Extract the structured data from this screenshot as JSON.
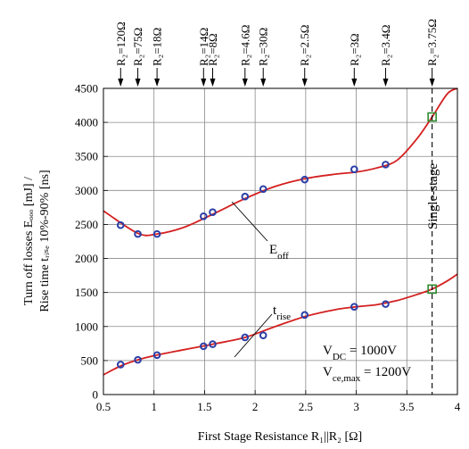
{
  "chart_data": {
    "type": "scatter",
    "xlabel": "First Stage Resistance R₁||R₂ [Ω]",
    "ylabel_line1": "Turn off losses Eₒₒₒ [mJ] /",
    "ylabel_line2": "Rise time tᵣᵢₛₑ 10%-90% [ns]",
    "xlim": [
      0.5,
      4
    ],
    "ylim": [
      0,
      4500
    ],
    "x_ticks": [
      0.5,
      1,
      1.5,
      2,
      2.5,
      3,
      3.5,
      4
    ],
    "x_tick_labels": [
      "0.5",
      "1",
      "1.5",
      "2",
      "2.5",
      "3",
      "3.5",
      "4"
    ],
    "y_ticks": [
      0,
      500,
      1000,
      1500,
      2000,
      2500,
      3000,
      3500,
      4000,
      4500
    ],
    "y_tick_labels": [
      "0",
      "500",
      "1000",
      "1500",
      "2000",
      "2500",
      "3000",
      "3500",
      "4000",
      "4500"
    ],
    "grid": true,
    "series": [
      {
        "name": "E_off",
        "label_main": "E",
        "label_sub": "off",
        "marker_color": "#2b3fa8",
        "fit_color": "#d42020",
        "x": [
          0.67,
          0.84,
          1.03,
          1.49,
          1.58,
          1.9,
          2.08,
          2.49,
          2.98,
          3.29
        ],
        "y": [
          2490,
          2360,
          2360,
          2620,
          2680,
          2910,
          3020,
          3160,
          3310,
          3380
        ],
        "fit_x": [
          0.5,
          0.84,
          1.03,
          1.3,
          1.58,
          1.9,
          2.2,
          2.5,
          2.8,
          3.0,
          3.2,
          3.4,
          3.6,
          3.75,
          3.9,
          4.0
        ],
        "fit_y": [
          2700,
          2370,
          2360,
          2460,
          2650,
          2880,
          3060,
          3175,
          3240,
          3270,
          3330,
          3440,
          3760,
          4080,
          4420,
          4620
        ]
      },
      {
        "name": "t_rise",
        "label_main": "t",
        "label_sub": "rise",
        "marker_color": "#2b3fa8",
        "fit_color": "#d42020",
        "x": [
          0.67,
          0.84,
          1.03,
          1.49,
          1.58,
          1.9,
          2.08,
          2.49,
          2.98,
          3.29
        ],
        "y": [
          440,
          510,
          580,
          710,
          740,
          840,
          870,
          1170,
          1290,
          1330
        ],
        "fit_x": [
          0.5,
          0.67,
          0.84,
          1.03,
          1.3,
          1.58,
          1.9,
          2.2,
          2.5,
          2.8,
          3.0,
          3.2,
          3.4,
          3.6,
          3.75,
          3.9,
          4.0
        ],
        "fit_y": [
          290,
          420,
          510,
          580,
          660,
          740,
          840,
          1000,
          1150,
          1250,
          1290,
          1320,
          1380,
          1470,
          1550,
          1670,
          1770
        ]
      }
    ],
    "single_stage": {
      "x": 3.75,
      "label": "Single-stage",
      "points": [
        {
          "y": 4080
        },
        {
          "y": 1550
        }
      ],
      "marker_color": "#2e8b2e"
    },
    "top_annotations": [
      {
        "x": 0.67,
        "label": "R₂=120Ω"
      },
      {
        "x": 0.84,
        "label": "R₂=75Ω"
      },
      {
        "x": 1.03,
        "label": "R₂=18Ω"
      },
      {
        "x": 1.49,
        "label": "R₂=14Ω"
      },
      {
        "x": 1.58,
        "label": "R₂=8Ω"
      },
      {
        "x": 1.9,
        "label": "R₂=4.6Ω"
      },
      {
        "x": 2.08,
        "label": "R₂=30Ω"
      },
      {
        "x": 2.49,
        "label": "R₂=2.5Ω"
      },
      {
        "x": 2.98,
        "label": "R₂=3Ω"
      },
      {
        "x": 3.29,
        "label": "R₂=3.4Ω"
      },
      {
        "x": 3.75,
        "label": "R₂=3.75Ω"
      }
    ],
    "conditions": {
      "vdc_main": "V",
      "vdc_sub": "DC",
      "vdc_value": " = 1000V",
      "vce_main": "V",
      "vce_sub": "ce,max",
      "vce_value": " = 1200V"
    }
  }
}
